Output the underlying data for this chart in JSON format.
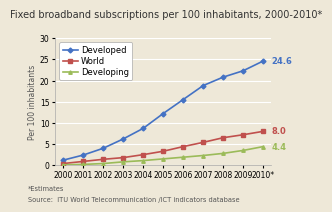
{
  "title": "Fixed broadband subscriptions per 100 inhabitants, 2000-2010*",
  "ylabel": "Per 100 inhabitants",
  "footnote1": "*Estimates",
  "footnote2": "Source:  ITU World Telecommunication /ICT indicators database",
  "years": [
    2000,
    2001,
    2002,
    2003,
    2004,
    2005,
    2006,
    2007,
    2008,
    2009,
    2010
  ],
  "xtick_labels": [
    "2000",
    "2001",
    "2002",
    "2003",
    "2004",
    "2005",
    "2006",
    "2007",
    "2008",
    "2009",
    "2010*"
  ],
  "developed": [
    1.2,
    2.4,
    4.0,
    6.2,
    8.7,
    12.2,
    15.5,
    18.8,
    20.8,
    22.3,
    24.6
  ],
  "world": [
    0.4,
    0.9,
    1.4,
    1.8,
    2.5,
    3.3,
    4.4,
    5.4,
    6.5,
    7.2,
    8.0
  ],
  "developing": [
    0.1,
    0.2,
    0.4,
    0.8,
    1.1,
    1.5,
    1.9,
    2.3,
    2.8,
    3.5,
    4.4
  ],
  "colors": {
    "developed": "#4472C4",
    "world": "#C0504D",
    "developing": "#9BBB59"
  },
  "end_labels": {
    "developed": "24.6",
    "world": "8.0",
    "developing": "4.4"
  },
  "ylim": [
    0,
    30
  ],
  "yticks": [
    0,
    5,
    10,
    15,
    20,
    25,
    30
  ],
  "bg_color": "#EEE8D8",
  "plot_bg": "#EEE8D8",
  "title_fontsize": 7.0,
  "legend_fontsize": 6.0,
  "axis_fontsize": 5.5,
  "footnote_fontsize": 4.8,
  "label_fontsize": 6.0
}
